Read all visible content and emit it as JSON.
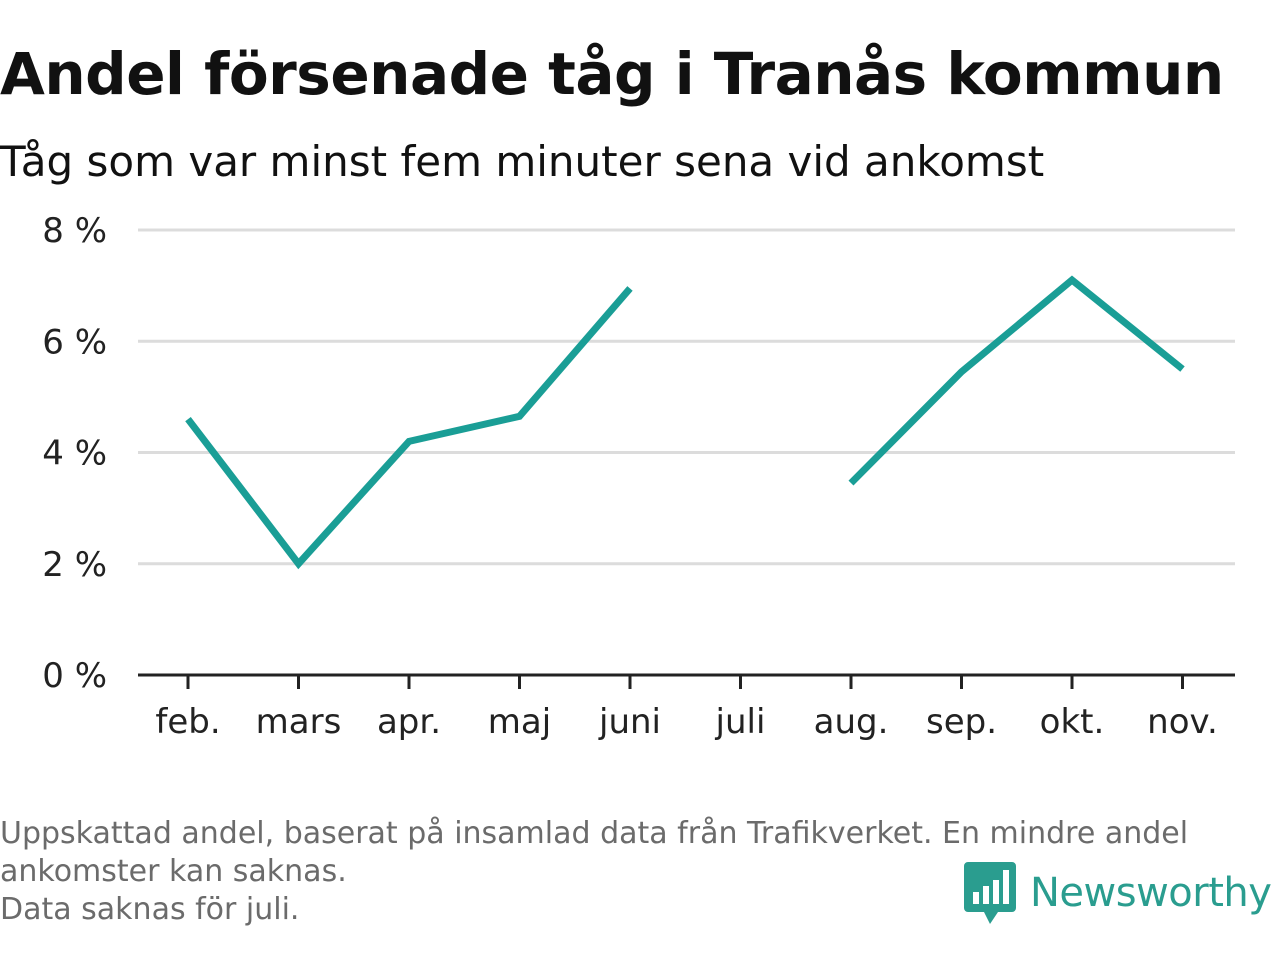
{
  "title": "Andel försenade tåg i Tranås kommun",
  "subtitle": "Tåg som var minst fem minuter sena vid ankomst",
  "footnote": {
    "line1": "Uppskattad andel, baserat på insamlad data från Trafikverket. En mindre andel",
    "line2": "ankomster kan saknas.",
    "line3": "Data saknas för juli."
  },
  "brand": {
    "name": "Newsworthy",
    "logo_icon": "newsworthy-chart-bubble-icon",
    "color": "#2a9d8f"
  },
  "chart_data": {
    "type": "line",
    "categories": [
      "feb.",
      "mars",
      "apr.",
      "maj",
      "juni",
      "juli",
      "aug.",
      "sep.",
      "okt.",
      "nov."
    ],
    "values": [
      4.6,
      2.0,
      4.2,
      4.65,
      6.95,
      null,
      3.45,
      5.45,
      7.1,
      5.5
    ],
    "ylim": [
      0,
      8
    ],
    "yticks": [
      0,
      2,
      4,
      6,
      8
    ],
    "ytick_labels": [
      "0 %",
      "2 %",
      "4 %",
      "6 %",
      "8 %"
    ],
    "grid": true,
    "line_color": "#1a9e96",
    "grid_color": "#dcdcdc",
    "axis_color": "#222222"
  }
}
